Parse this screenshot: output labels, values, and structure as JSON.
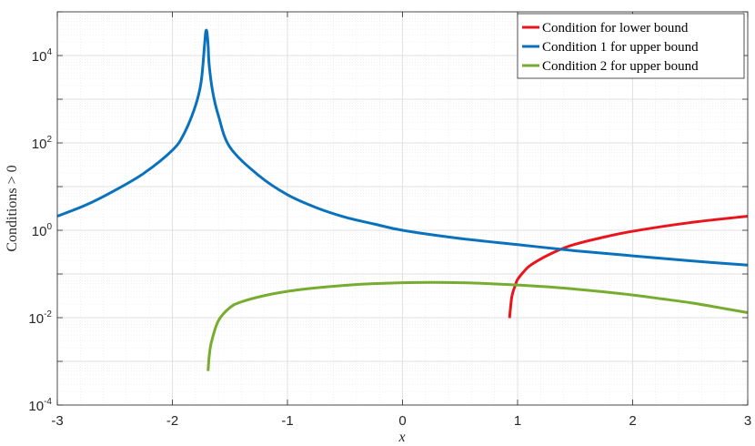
{
  "chart_data": {
    "type": "line",
    "xlabel": "x",
    "ylabel": "Conditions > 0",
    "xlim": [
      -3,
      3
    ],
    "ylim": [
      0.0001,
      100000
    ],
    "yscale": "log",
    "grid": true,
    "minor_grid": true,
    "legend_position": "top-right",
    "x_ticks": [
      {
        "value": -3,
        "label": "-3"
      },
      {
        "value": -2,
        "label": "-2"
      },
      {
        "value": -1,
        "label": "-1"
      },
      {
        "value": 0,
        "label": "0"
      },
      {
        "value": 1,
        "label": "1"
      },
      {
        "value": 2,
        "label": "2"
      },
      {
        "value": 3,
        "label": "3"
      }
    ],
    "y_ticks": [
      {
        "value": 0.0001,
        "base": "10",
        "exp": "-4"
      },
      {
        "value": 0.01,
        "base": "10",
        "exp": "-2"
      },
      {
        "value": 1,
        "base": "10",
        "exp": "0"
      },
      {
        "value": 100,
        "base": "10",
        "exp": "2"
      },
      {
        "value": 10000,
        "base": "10",
        "exp": "4"
      }
    ],
    "series": [
      {
        "name": "Condition for lower bound",
        "color": "#e8151d",
        "x": [
          0.93,
          0.95,
          0.98,
          1.0,
          1.05,
          1.1,
          1.2,
          1.3,
          1.4,
          1.5,
          1.7,
          2.0,
          2.5,
          3.0
        ],
        "y": [
          0.0098,
          0.03,
          0.055,
          0.075,
          0.11,
          0.15,
          0.22,
          0.3,
          0.39,
          0.48,
          0.65,
          0.95,
          1.5,
          2.1
        ]
      },
      {
        "name": "Condition 1 for upper bound",
        "color": "#0a72bd",
        "x": [
          -3.0,
          -2.75,
          -2.5,
          -2.25,
          -2.0,
          -1.9,
          -1.8,
          -1.75,
          -1.72,
          -1.71,
          -1.7,
          -1.69,
          -1.68,
          -1.65,
          -1.6,
          -1.5,
          -1.25,
          -1.0,
          -0.75,
          -0.5,
          -0.25,
          0.0,
          0.5,
          1.0,
          1.5,
          2.0,
          2.5,
          3.0
        ],
        "y": [
          2.1,
          3.8,
          8.2,
          20,
          68,
          160,
          700,
          2500,
          18000,
          35000,
          35000,
          18000,
          6000,
          1500,
          420,
          80,
          18,
          6.5,
          3.3,
          2.0,
          1.4,
          1.0,
          0.65,
          0.47,
          0.34,
          0.26,
          0.2,
          0.16
        ]
      },
      {
        "name": "Condition 2 for upper bound",
        "color": "#77ac30",
        "x": [
          -1.69,
          -1.68,
          -1.66,
          -1.6,
          -1.5,
          -1.4,
          -1.2,
          -1.0,
          -0.75,
          -0.5,
          -0.25,
          0.0,
          0.25,
          0.5,
          0.75,
          1.0,
          1.25,
          1.5,
          1.75,
          2.0,
          2.25,
          2.5,
          2.75,
          3.0
        ],
        "y": [
          0.0006,
          0.0013,
          0.0028,
          0.0085,
          0.017,
          0.023,
          0.032,
          0.04,
          0.048,
          0.055,
          0.06,
          0.063,
          0.064,
          0.063,
          0.06,
          0.056,
          0.051,
          0.045,
          0.039,
          0.033,
          0.027,
          0.022,
          0.017,
          0.013
        ]
      }
    ]
  }
}
